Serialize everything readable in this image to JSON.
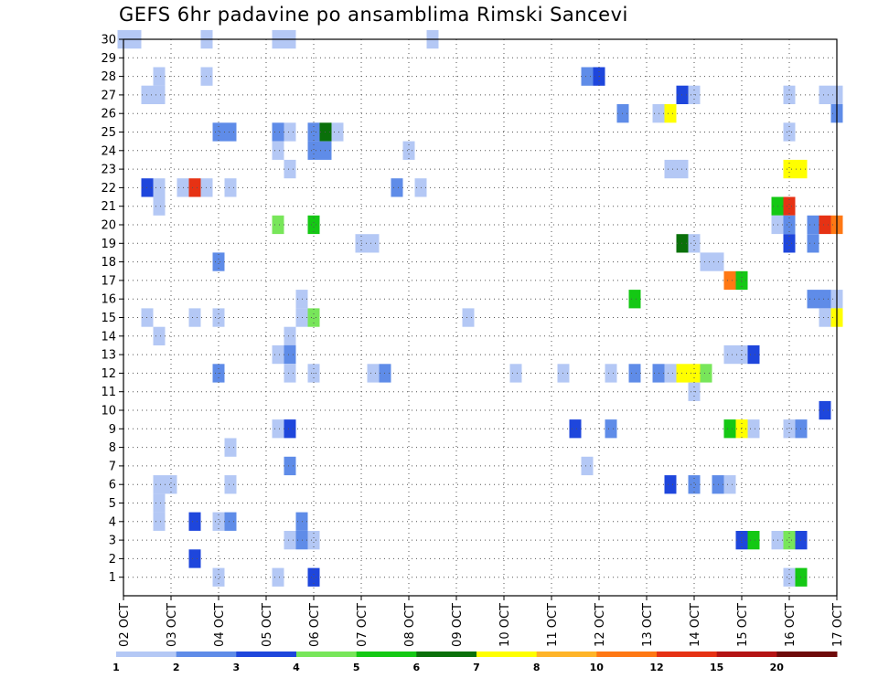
{
  "chart_data": {
    "type": "heatmap",
    "title": "GEFS 6hr padavine po ansamblima Rimski Sancevi",
    "x_tick_labels": [
      "02 OCT",
      "03 OCT",
      "04 OCT",
      "05 OCT",
      "06 OCT",
      "07 OCT",
      "08 OCT",
      "09 OCT",
      "10 OCT",
      "11 OCT",
      "12 OCT",
      "13 OCT",
      "14 OCT",
      "15 OCT",
      "16 OCT",
      "17 OCT"
    ],
    "y_tick_labels": [
      "1",
      "2",
      "3",
      "4",
      "5",
      "6",
      "7",
      "8",
      "9",
      "10",
      "11",
      "12",
      "13",
      "14",
      "15",
      "16",
      "17",
      "18",
      "19",
      "20",
      "21",
      "22",
      "23",
      "24",
      "25",
      "26",
      "27",
      "28",
      "29",
      "30"
    ],
    "x_range_steps": [
      0,
      60
    ],
    "y_range_members": [
      0,
      30
    ],
    "steps_per_day": 4,
    "colorbar": {
      "thresholds": [
        1,
        2,
        3,
        4,
        5,
        6,
        7,
        8,
        10,
        12,
        15,
        20
      ],
      "colors": [
        "#b4c8f5",
        "#5f8ce8",
        "#1e46dc",
        "#78e65a",
        "#14c814",
        "#0a700a",
        "#ffff00",
        "#ffb428",
        "#ff7814",
        "#e63214",
        "#b41414",
        "#6e0a0a"
      ]
    },
    "cells": [
      [
        0,
        30,
        1
      ],
      [
        1,
        30,
        1
      ],
      [
        7,
        30,
        1
      ],
      [
        13,
        30,
        1
      ],
      [
        14,
        30,
        1
      ],
      [
        26,
        30,
        1
      ],
      [
        3,
        28,
        1
      ],
      [
        7,
        28,
        1
      ],
      [
        39,
        28,
        2
      ],
      [
        40,
        28,
        3
      ],
      [
        2,
        27,
        1
      ],
      [
        3,
        27,
        1
      ],
      [
        47,
        27,
        3
      ],
      [
        48,
        27,
        1
      ],
      [
        56,
        27,
        1
      ],
      [
        59,
        27,
        1
      ],
      [
        60,
        27,
        1
      ],
      [
        42,
        26,
        2
      ],
      [
        45,
        26,
        1
      ],
      [
        46,
        26,
        7
      ],
      [
        60,
        26,
        2
      ],
      [
        8,
        25,
        2
      ],
      [
        9,
        25,
        2
      ],
      [
        13,
        25,
        2
      ],
      [
        14,
        25,
        1
      ],
      [
        16,
        25,
        2
      ],
      [
        17,
        25,
        6
      ],
      [
        18,
        25,
        1
      ],
      [
        56,
        25,
        1
      ],
      [
        13,
        24,
        1
      ],
      [
        16,
        24,
        2
      ],
      [
        17,
        24,
        2
      ],
      [
        24,
        24,
        1
      ],
      [
        14,
        23,
        1
      ],
      [
        46,
        23,
        1
      ],
      [
        47,
        23,
        1
      ],
      [
        56,
        23,
        7
      ],
      [
        57,
        23,
        7
      ],
      [
        2,
        22,
        3
      ],
      [
        3,
        22,
        1
      ],
      [
        5,
        22,
        1
      ],
      [
        6,
        22,
        10
      ],
      [
        7,
        22,
        1
      ],
      [
        9,
        22,
        1
      ],
      [
        23,
        22,
        2
      ],
      [
        25,
        22,
        1
      ],
      [
        3,
        21,
        1
      ],
      [
        55,
        21,
        5
      ],
      [
        56,
        21,
        10
      ],
      [
        13,
        20,
        4
      ],
      [
        16,
        20,
        5
      ],
      [
        55,
        20,
        1
      ],
      [
        56,
        20,
        2
      ],
      [
        58,
        20,
        2
      ],
      [
        59,
        20,
        10
      ],
      [
        60,
        20,
        9
      ],
      [
        20,
        19,
        1
      ],
      [
        21,
        19,
        1
      ],
      [
        47,
        19,
        6
      ],
      [
        48,
        19,
        1
      ],
      [
        56,
        19,
        3
      ],
      [
        58,
        19,
        2
      ],
      [
        8,
        18,
        2
      ],
      [
        49,
        18,
        1
      ],
      [
        50,
        18,
        1
      ],
      [
        51,
        17,
        9
      ],
      [
        52,
        17,
        5
      ],
      [
        15,
        16,
        1
      ],
      [
        43,
        16,
        5
      ],
      [
        58,
        16,
        2
      ],
      [
        59,
        16,
        2
      ],
      [
        60,
        16,
        1
      ],
      [
        2,
        15,
        1
      ],
      [
        6,
        15,
        1
      ],
      [
        8,
        15,
        1
      ],
      [
        15,
        15,
        1
      ],
      [
        16,
        15,
        4
      ],
      [
        29,
        15,
        1
      ],
      [
        59,
        15,
        1
      ],
      [
        60,
        15,
        7
      ],
      [
        14,
        14,
        1
      ],
      [
        3,
        14,
        1
      ],
      [
        13,
        13,
        1
      ],
      [
        14,
        13,
        2
      ],
      [
        51,
        13,
        1
      ],
      [
        52,
        13,
        1
      ],
      [
        53,
        13,
        3
      ],
      [
        8,
        12,
        2
      ],
      [
        14,
        12,
        1
      ],
      [
        16,
        12,
        1
      ],
      [
        21,
        12,
        1
      ],
      [
        22,
        12,
        2
      ],
      [
        33,
        12,
        1
      ],
      [
        37,
        12,
        1
      ],
      [
        41,
        12,
        1
      ],
      [
        43,
        12,
        2
      ],
      [
        45,
        12,
        2
      ],
      [
        46,
        12,
        1
      ],
      [
        47,
        12,
        7
      ],
      [
        48,
        12,
        7
      ],
      [
        49,
        12,
        4
      ],
      [
        48,
        11,
        1
      ],
      [
        59,
        10,
        3
      ],
      [
        13,
        9,
        1
      ],
      [
        14,
        9,
        3
      ],
      [
        38,
        9,
        3
      ],
      [
        41,
        9,
        2
      ],
      [
        51,
        9,
        5
      ],
      [
        52,
        9,
        7
      ],
      [
        53,
        9,
        1
      ],
      [
        56,
        9,
        1
      ],
      [
        57,
        9,
        2
      ],
      [
        9,
        8,
        1
      ],
      [
        14,
        7,
        2
      ],
      [
        39,
        7,
        1
      ],
      [
        3,
        6,
        1
      ],
      [
        4,
        6,
        1
      ],
      [
        9,
        6,
        1
      ],
      [
        46,
        6,
        3
      ],
      [
        48,
        6,
        2
      ],
      [
        50,
        6,
        2
      ],
      [
        51,
        6,
        1
      ],
      [
        3,
        5,
        1
      ],
      [
        3,
        4,
        1
      ],
      [
        6,
        4,
        3
      ],
      [
        8,
        4,
        1
      ],
      [
        9,
        4,
        2
      ],
      [
        15,
        4,
        2
      ],
      [
        14,
        3,
        1
      ],
      [
        15,
        3,
        2
      ],
      [
        16,
        3,
        1
      ],
      [
        52,
        3,
        3
      ],
      [
        53,
        3,
        5
      ],
      [
        55,
        3,
        1
      ],
      [
        56,
        3,
        4
      ],
      [
        57,
        3,
        3
      ],
      [
        6,
        2,
        3
      ],
      [
        8,
        1,
        1
      ],
      [
        13,
        1,
        1
      ],
      [
        16,
        1,
        3
      ],
      [
        56,
        1,
        1
      ],
      [
        57,
        1,
        5
      ]
    ]
  }
}
